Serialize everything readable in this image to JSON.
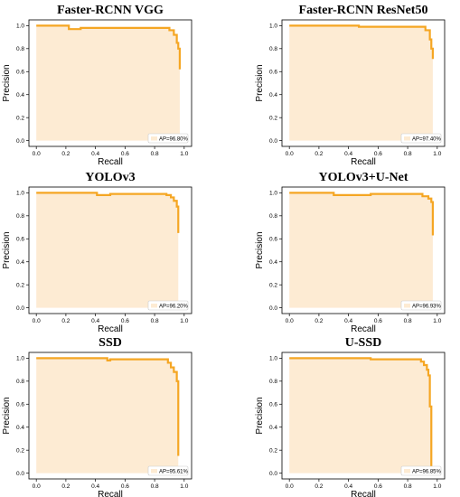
{
  "chart_data": [
    {
      "type": "area",
      "title": "Faster-RCNN VGG",
      "xlabel": "Recall",
      "ylabel": "Precision",
      "xlim": [
        0,
        1
      ],
      "ylim": [
        0,
        1.05
      ],
      "xticks": [
        "0.0",
        "0.2",
        "0.4",
        "0.6",
        "0.8",
        "1.0"
      ],
      "yticks": [
        "0.0",
        "0.2",
        "0.4",
        "0.6",
        "0.8",
        "1.0"
      ],
      "legend": "AP=96.80%",
      "legend_position": "lower-right",
      "fill_color": "#fdebd3",
      "line_color": "#f5a623",
      "x": [
        0.0,
        0.22,
        0.22,
        0.3,
        0.3,
        0.9,
        0.9,
        0.93,
        0.93,
        0.95,
        0.95,
        0.96,
        0.96,
        0.97,
        0.97
      ],
      "y": [
        1.0,
        1.0,
        0.97,
        0.97,
        0.98,
        0.98,
        0.96,
        0.96,
        0.92,
        0.92,
        0.85,
        0.85,
        0.8,
        0.8,
        0.62
      ]
    },
    {
      "type": "area",
      "title": "Faster-RCNN ResNet50",
      "xlabel": "Recall",
      "ylabel": "Precision",
      "xlim": [
        0,
        1
      ],
      "ylim": [
        0,
        1.05
      ],
      "xticks": [
        "0.0",
        "0.2",
        "0.4",
        "0.6",
        "0.8",
        "1.0"
      ],
      "yticks": [
        "0.0",
        "0.2",
        "0.4",
        "0.6",
        "0.8",
        "1.0"
      ],
      "legend": "AP=97.40%",
      "legend_position": "lower-right",
      "fill_color": "#fdebd3",
      "line_color": "#f5a623",
      "x": [
        0.0,
        0.47,
        0.47,
        0.92,
        0.92,
        0.95,
        0.95,
        0.96,
        0.96,
        0.97,
        0.97
      ],
      "y": [
        1.0,
        1.0,
        0.99,
        0.99,
        0.96,
        0.96,
        0.88,
        0.88,
        0.8,
        0.8,
        0.71
      ]
    },
    {
      "type": "area",
      "title": "YOLOv3",
      "xlabel": "Recall",
      "ylabel": "Precision",
      "xlim": [
        0,
        1
      ],
      "ylim": [
        0,
        1.05
      ],
      "xticks": [
        "0.0",
        "0.2",
        "0.4",
        "0.6",
        "0.8",
        "1.0"
      ],
      "yticks": [
        "0.0",
        "0.2",
        "0.4",
        "0.6",
        "0.8",
        "1.0"
      ],
      "legend": "AP=96.20%",
      "legend_position": "lower-right",
      "fill_color": "#fdebd3",
      "line_color": "#f5a623",
      "x": [
        0.0,
        0.41,
        0.41,
        0.5,
        0.5,
        0.88,
        0.88,
        0.91,
        0.91,
        0.93,
        0.93,
        0.95,
        0.95,
        0.96,
        0.96
      ],
      "y": [
        1.0,
        1.0,
        0.98,
        0.98,
        0.99,
        0.99,
        0.98,
        0.98,
        0.96,
        0.96,
        0.93,
        0.93,
        0.88,
        0.88,
        0.65
      ]
    },
    {
      "type": "area",
      "title": "YOLOv3+U-Net",
      "xlabel": "Recall",
      "ylabel": "Precision",
      "xlim": [
        0,
        1
      ],
      "ylim": [
        0,
        1.05
      ],
      "xticks": [
        "0.0",
        "0.2",
        "0.4",
        "0.6",
        "0.8",
        "1.0"
      ],
      "yticks": [
        "0.0",
        "0.2",
        "0.4",
        "0.6",
        "0.8",
        "1.0"
      ],
      "legend": "AP=96.93%",
      "legend_position": "lower-right",
      "fill_color": "#fdebd3",
      "line_color": "#f5a623",
      "x": [
        0.0,
        0.3,
        0.3,
        0.55,
        0.55,
        0.9,
        0.9,
        0.94,
        0.94,
        0.96,
        0.96,
        0.97,
        0.97
      ],
      "y": [
        1.0,
        1.0,
        0.98,
        0.98,
        0.99,
        0.99,
        0.97,
        0.97,
        0.95,
        0.95,
        0.92,
        0.92,
        0.63
      ]
    },
    {
      "type": "area",
      "title": "SSD",
      "xlabel": "Recall",
      "ylabel": "Precision",
      "xlim": [
        0,
        1
      ],
      "ylim": [
        0,
        1.05
      ],
      "xticks": [
        "0.0",
        "0.2",
        "0.4",
        "0.6",
        "0.8",
        "1.0"
      ],
      "yticks": [
        "0.0",
        "0.2",
        "0.4",
        "0.6",
        "0.8",
        "1.0"
      ],
      "legend": "AP=95.61%",
      "legend_position": "lower-right",
      "fill_color": "#fdebd3",
      "line_color": "#f5a623",
      "x": [
        0.0,
        0.48,
        0.48,
        0.5,
        0.5,
        0.89,
        0.89,
        0.91,
        0.91,
        0.93,
        0.93,
        0.95,
        0.95,
        0.96,
        0.96
      ],
      "y": [
        1.0,
        1.0,
        0.98,
        0.98,
        0.99,
        0.99,
        0.96,
        0.96,
        0.92,
        0.92,
        0.88,
        0.88,
        0.8,
        0.8,
        0.15
      ]
    },
    {
      "type": "area",
      "title": "U-SSD",
      "xlabel": "Recall",
      "ylabel": "Precision",
      "xlim": [
        0,
        1
      ],
      "ylim": [
        0,
        1.05
      ],
      "xticks": [
        "0.0",
        "0.2",
        "0.4",
        "0.6",
        "0.8",
        "1.0"
      ],
      "yticks": [
        "0.0",
        "0.2",
        "0.4",
        "0.6",
        "0.8",
        "1.0"
      ],
      "legend": "AP=96.85%",
      "legend_position": "lower-right",
      "fill_color": "#fdebd3",
      "line_color": "#f5a623",
      "x": [
        0.0,
        0.55,
        0.55,
        0.89,
        0.89,
        0.91,
        0.91,
        0.93,
        0.93,
        0.94,
        0.94,
        0.95,
        0.95,
        0.96,
        0.96
      ],
      "y": [
        1.0,
        1.0,
        0.99,
        0.99,
        0.97,
        0.97,
        0.94,
        0.94,
        0.9,
        0.9,
        0.85,
        0.85,
        0.58,
        0.58,
        0.05
      ]
    }
  ]
}
